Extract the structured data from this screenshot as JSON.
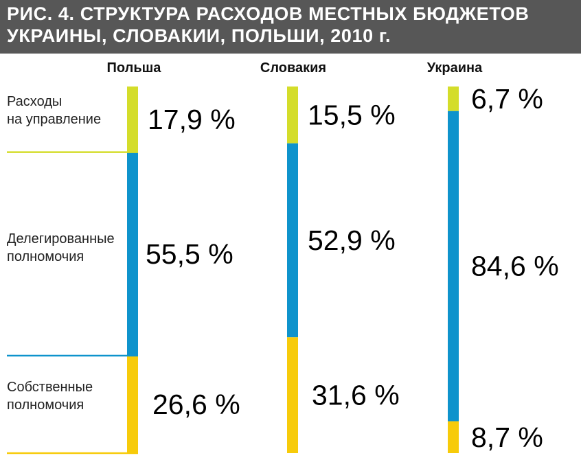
{
  "header": {
    "title": "РИС. 4. СТРУКТУРА РАСХОДОВ МЕСТНЫХ БЮДЖЕТОВ\nУКРАИНЫ, СЛОВАКИИ, ПОЛЬШИ, 2010 г."
  },
  "chart_data": {
    "type": "bar",
    "orientation": "vertical-stacked-100",
    "title": "РИС. 4. СТРУКТУРА РАСХОДОВ МЕСТНЫХ БЮДЖЕТОВ УКРАИНЫ, СЛОВАКИИ, ПОЛЬШИ, 2010 г.",
    "categories": [
      "Польша",
      "Словакия",
      "Украина"
    ],
    "segment_labels": [
      [
        "Расходы",
        "на управление"
      ],
      [
        "Делегированные",
        "полномочия"
      ],
      [
        "Собственные",
        "полномочия"
      ]
    ],
    "series": [
      {
        "name": "Расходы на управление",
        "color": "#d4dd2a",
        "values": [
          17.9,
          15.5,
          6.7
        ],
        "labels": [
          "17,9 %",
          "15,5 %",
          "6,7 %"
        ]
      },
      {
        "name": "Делегированные полномочия",
        "color": "#0e93cc",
        "values": [
          55.5,
          52.9,
          84.6
        ],
        "labels": [
          "55,5 %",
          "52,9 %",
          "84,6 %"
        ]
      },
      {
        "name": "Собственные полномочия",
        "color": "#f7cb0a",
        "values": [
          26.6,
          31.6,
          8.7
        ],
        "labels": [
          "26,6 %",
          "31,6 %",
          "8,7 %"
        ]
      }
    ],
    "unit": "%",
    "ylim": [
      0,
      100
    ],
    "grid": false,
    "legend": "left"
  }
}
